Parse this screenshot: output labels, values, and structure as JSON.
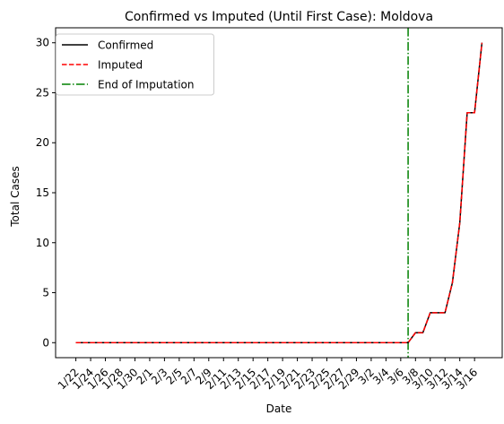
{
  "chart_data": {
    "type": "line",
    "title": "Confirmed vs Imputed (Until First Case): Moldova",
    "xlabel": "Date",
    "ylabel": "Total Cases",
    "categories": [
      "1/22",
      "1/23",
      "1/24",
      "1/25",
      "1/26",
      "1/27",
      "1/28",
      "1/29",
      "1/30",
      "1/31",
      "2/1",
      "2/2",
      "2/3",
      "2/4",
      "2/5",
      "2/6",
      "2/7",
      "2/8",
      "2/9",
      "2/10",
      "2/11",
      "2/12",
      "2/13",
      "2/14",
      "2/15",
      "2/16",
      "2/17",
      "2/18",
      "2/19",
      "2/20",
      "2/21",
      "2/22",
      "2/23",
      "2/24",
      "2/25",
      "2/26",
      "2/27",
      "2/28",
      "2/29",
      "3/1",
      "3/2",
      "3/3",
      "3/4",
      "3/5",
      "3/6",
      "3/7",
      "3/8",
      "3/9",
      "3/10",
      "3/11",
      "3/12",
      "3/13",
      "3/14",
      "3/15",
      "3/16",
      "3/17"
    ],
    "tick_labels": [
      "1/22",
      "1/24",
      "1/26",
      "1/28",
      "1/30",
      "2/1",
      "2/3",
      "2/5",
      "2/7",
      "2/9",
      "2/11",
      "2/13",
      "2/15",
      "2/17",
      "2/19",
      "2/21",
      "2/23",
      "2/25",
      "2/27",
      "2/29",
      "3/2",
      "3/4",
      "3/6",
      "3/8",
      "3/10",
      "3/12",
      "3/14",
      "3/16"
    ],
    "series": [
      {
        "name": "Confirmed",
        "color": "#000000",
        "style": "solid",
        "values": [
          0,
          0,
          0,
          0,
          0,
          0,
          0,
          0,
          0,
          0,
          0,
          0,
          0,
          0,
          0,
          0,
          0,
          0,
          0,
          0,
          0,
          0,
          0,
          0,
          0,
          0,
          0,
          0,
          0,
          0,
          0,
          0,
          0,
          0,
          0,
          0,
          0,
          0,
          0,
          0,
          0,
          0,
          0,
          0,
          0,
          0,
          1,
          1,
          3,
          3,
          3,
          6,
          12,
          23,
          23,
          30
        ]
      },
      {
        "name": "Imputed",
        "color": "#ff0000",
        "style": "dashed",
        "values": [
          0,
          0,
          0,
          0,
          0,
          0,
          0,
          0,
          0,
          0,
          0,
          0,
          0,
          0,
          0,
          0,
          0,
          0,
          0,
          0,
          0,
          0,
          0,
          0,
          0,
          0,
          0,
          0,
          0,
          0,
          0,
          0,
          0,
          0,
          0,
          0,
          0,
          0,
          0,
          0,
          0,
          0,
          0,
          0,
          0,
          0,
          1,
          1,
          3,
          3,
          3,
          6,
          12,
          23,
          23,
          30
        ]
      }
    ],
    "vline": {
      "name": "End of Imputation",
      "x": "3/7",
      "color": "#008000",
      "style": "dashdot"
    },
    "yticks": [
      0,
      5,
      10,
      15,
      20,
      25,
      30
    ],
    "ylim": [
      -1.5,
      31.5
    ],
    "grid": false,
    "legend_position": "upper-left"
  }
}
